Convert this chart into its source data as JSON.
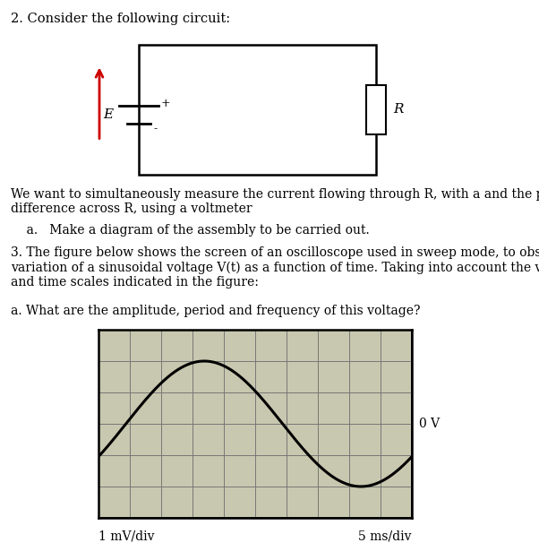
{
  "bg_color": "#ffffff",
  "text_color": "#000000",
  "title_text": "2. Consider the following circuit:",
  "title_fontsize": 10.5,
  "body_fontsize": 10.0,
  "arrow_color": "#cc0000",
  "grid_color": "#777777",
  "grid_nx": 10,
  "grid_ny": 6,
  "sine_color": "#000000",
  "sine_linewidth": 2.2,
  "osc_bg": "#c8c8b0",
  "ov_label": "0 V",
  "scale_label_left": "1 mV/div",
  "scale_label_right": "5 ms/div"
}
